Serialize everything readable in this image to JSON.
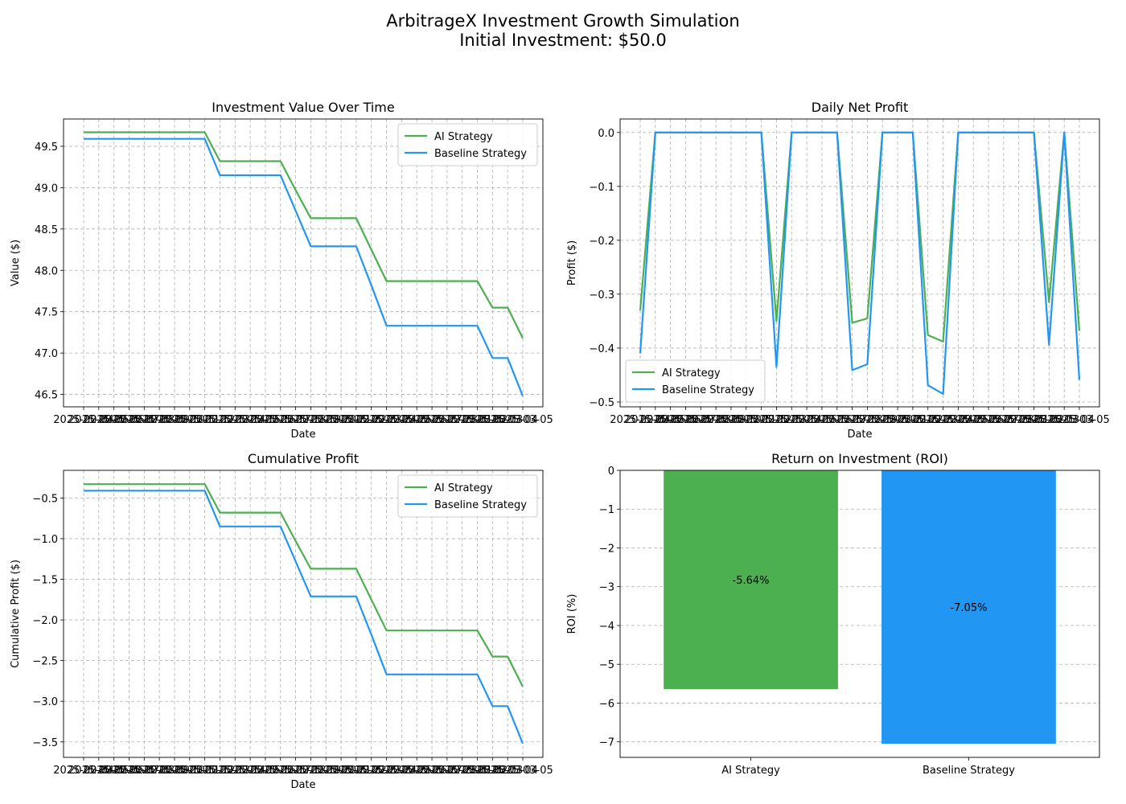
{
  "figure": {
    "title_line1": "ArbitrageX Investment Growth Simulation",
    "title_line2": "Initial Investment: $50.0"
  },
  "colors": {
    "ai": "#4caf50",
    "baseline": "#2196f3",
    "grid": "#b0b0b0"
  },
  "chart_data": [
    {
      "type": "line",
      "title": "Investment Value Over Time",
      "xlabel": "Date",
      "ylabel": "Value ($)",
      "x_tick_labels": [
        "2025-02-04",
        "2025-02-05",
        "2025-02-06",
        "2025-02-07",
        "2025-02-08",
        "2025-02-09",
        "2025-02-10",
        "2025-02-11",
        "2025-02-12",
        "2025-02-13",
        "2025-02-14",
        "2025-02-15",
        "2025-02-16",
        "2025-02-17",
        "2025-02-18",
        "2025-02-19",
        "2025-02-20",
        "2025-02-21",
        "2025-02-22",
        "2025-02-23",
        "2025-02-24",
        "2025-02-25",
        "2025-02-26",
        "2025-02-27",
        "2025-02-28",
        "2025-03-01",
        "2025-03-02",
        "2025-03-03",
        "2025-03-04",
        "2025-03-05"
      ],
      "ylim": [
        46.35,
        49.83
      ],
      "yticks": [
        46.5,
        47.0,
        47.5,
        48.0,
        48.5,
        49.0,
        49.5
      ],
      "ytick_labels": [
        "46.5",
        "47.0",
        "47.5",
        "48.0",
        "48.5",
        "49.0",
        "49.5"
      ],
      "legend": "top-right",
      "grid": true,
      "series": [
        {
          "name": "AI Strategy",
          "values": [
            49.67,
            49.67,
            49.67,
            49.67,
            49.67,
            49.67,
            49.67,
            49.67,
            49.67,
            49.32,
            49.32,
            49.32,
            49.32,
            49.32,
            48.97,
            48.63,
            48.63,
            48.63,
            48.63,
            48.25,
            47.87,
            47.87,
            47.87,
            47.87,
            47.87,
            47.87,
            47.87,
            47.55,
            47.55,
            47.18
          ]
        },
        {
          "name": "Baseline Strategy",
          "values": [
            49.59,
            49.59,
            49.59,
            49.59,
            49.59,
            49.59,
            49.59,
            49.59,
            49.59,
            49.15,
            49.15,
            49.15,
            49.15,
            49.15,
            48.72,
            48.29,
            48.29,
            48.29,
            48.29,
            47.82,
            47.33,
            47.33,
            47.33,
            47.33,
            47.33,
            47.33,
            47.33,
            46.94,
            46.94,
            46.48
          ]
        }
      ]
    },
    {
      "type": "line",
      "title": "Daily Net Profit",
      "xlabel": "Date",
      "ylabel": "Profit ($)",
      "x_tick_labels": [
        "2025-02-04",
        "2025-02-05",
        "2025-02-06",
        "2025-02-07",
        "2025-02-08",
        "2025-02-09",
        "2025-02-10",
        "2025-02-11",
        "2025-02-12",
        "2025-02-13",
        "2025-02-14",
        "2025-02-15",
        "2025-02-16",
        "2025-02-17",
        "2025-02-18",
        "2025-02-19",
        "2025-02-20",
        "2025-02-21",
        "2025-02-22",
        "2025-02-23",
        "2025-02-24",
        "2025-02-25",
        "2025-02-26",
        "2025-02-27",
        "2025-02-28",
        "2025-03-01",
        "2025-03-02",
        "2025-03-03",
        "2025-03-04",
        "2025-03-05"
      ],
      "ylim": [
        -0.509,
        0.025
      ],
      "yticks": [
        -0.5,
        -0.4,
        -0.3,
        -0.2,
        -0.1,
        0.0
      ],
      "ytick_labels": [
        "−0.5",
        "−0.4",
        "−0.3",
        "−0.2",
        "−0.1",
        "0.0"
      ],
      "legend": "bottom-left",
      "grid": true,
      "series": [
        {
          "name": "AI Strategy",
          "values": [
            -0.33,
            0,
            0,
            0,
            0,
            0,
            0,
            0,
            0,
            -0.35,
            0,
            0,
            0,
            0,
            -0.353,
            -0.345,
            0,
            0,
            0,
            -0.376,
            -0.388,
            0,
            0,
            0,
            0,
            0,
            0,
            -0.315,
            0,
            -0.368
          ]
        },
        {
          "name": "Baseline Strategy",
          "values": [
            -0.41,
            0,
            0,
            0,
            0,
            0,
            0,
            0,
            0,
            -0.435,
            0,
            0,
            0,
            0,
            -0.441,
            -0.43,
            0,
            0,
            0,
            -0.469,
            -0.485,
            0,
            0,
            0,
            0,
            0,
            0,
            -0.394,
            0,
            -0.459
          ]
        }
      ]
    },
    {
      "type": "line",
      "title": "Cumulative Profit",
      "xlabel": "Date",
      "ylabel": "Cumulative Profit ($)",
      "x_tick_labels": [
        "2025-02-04",
        "2025-02-05",
        "2025-02-06",
        "2025-02-07",
        "2025-02-08",
        "2025-02-09",
        "2025-02-10",
        "2025-02-11",
        "2025-02-12",
        "2025-02-13",
        "2025-02-14",
        "2025-02-15",
        "2025-02-16",
        "2025-02-17",
        "2025-02-18",
        "2025-02-19",
        "2025-02-20",
        "2025-02-21",
        "2025-02-22",
        "2025-02-23",
        "2025-02-24",
        "2025-02-25",
        "2025-02-26",
        "2025-02-27",
        "2025-02-28",
        "2025-03-01",
        "2025-03-02",
        "2025-03-03",
        "2025-03-04",
        "2025-03-05"
      ],
      "ylim": [
        -3.69,
        -0.16
      ],
      "yticks": [
        -3.5,
        -3.0,
        -2.5,
        -2.0,
        -1.5,
        -1.0,
        -0.5
      ],
      "ytick_labels": [
        "−3.5",
        "−3.0",
        "−2.5",
        "−2.0",
        "−1.5",
        "−1.0",
        "−0.5"
      ],
      "legend": "top-right",
      "grid": true,
      "series": [
        {
          "name": "AI Strategy",
          "values": [
            -0.33,
            -0.33,
            -0.33,
            -0.33,
            -0.33,
            -0.33,
            -0.33,
            -0.33,
            -0.33,
            -0.68,
            -0.68,
            -0.68,
            -0.68,
            -0.68,
            -1.03,
            -1.37,
            -1.37,
            -1.37,
            -1.37,
            -1.75,
            -2.13,
            -2.13,
            -2.13,
            -2.13,
            -2.13,
            -2.13,
            -2.13,
            -2.45,
            -2.45,
            -2.82
          ]
        },
        {
          "name": "Baseline Strategy",
          "values": [
            -0.41,
            -0.41,
            -0.41,
            -0.41,
            -0.41,
            -0.41,
            -0.41,
            -0.41,
            -0.41,
            -0.85,
            -0.85,
            -0.85,
            -0.85,
            -0.85,
            -1.28,
            -1.71,
            -1.71,
            -1.71,
            -1.71,
            -2.18,
            -2.67,
            -2.67,
            -2.67,
            -2.67,
            -2.67,
            -2.67,
            -2.67,
            -3.06,
            -3.06,
            -3.52
          ]
        }
      ]
    },
    {
      "type": "bar",
      "title": "Return on Investment (ROI)",
      "xlabel": "",
      "ylabel": "ROI (%)",
      "categories": [
        "AI Strategy",
        "Baseline Strategy"
      ],
      "values": [
        -5.64,
        -7.05
      ],
      "value_labels": [
        "-5.64%",
        "-7.05%"
      ],
      "ylim": [
        -7.4,
        0
      ],
      "yticks": [
        -7,
        -6,
        -5,
        -4,
        -3,
        -2,
        -1,
        0
      ],
      "ytick_labels": [
        "−7",
        "−6",
        "−5",
        "−4",
        "−3",
        "−2",
        "−1",
        "0"
      ],
      "grid": true
    }
  ]
}
